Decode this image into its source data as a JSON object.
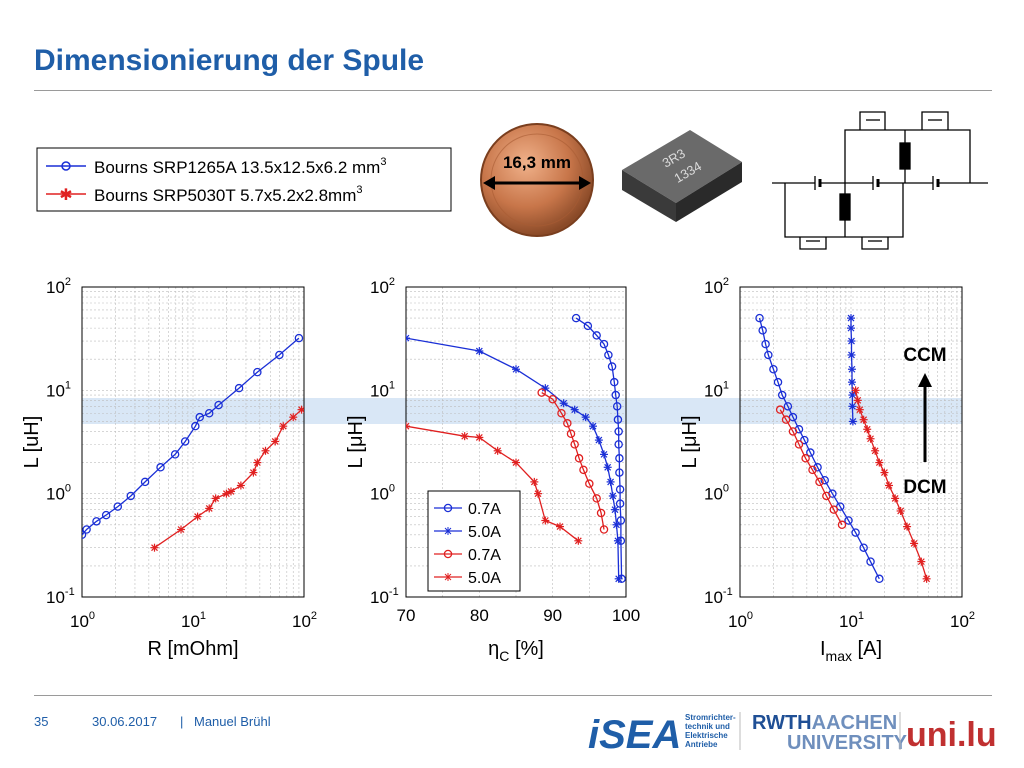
{
  "slide": {
    "title": "Dimensionierung der Spule",
    "page_number": "35",
    "date": "30.06.2017",
    "separator": "|",
    "author": "Manuel Brühl"
  },
  "legend_top": {
    "entries": [
      {
        "label": "Bourns SRP1265A 13.5x12.5x6.2 mm",
        "sup": "3",
        "color": "#1a2fd6",
        "marker": "circle"
      },
      {
        "label": "Bourns SRP5030T 5.7x5.2x2.8mm",
        "sup": "3",
        "color": "#e02020",
        "marker": "star"
      }
    ]
  },
  "coin": {
    "label": "16,3 mm"
  },
  "inductor_marking": {
    "line1": "3R3",
    "line2": "1334"
  },
  "logos": {
    "isea": "iSEA",
    "isea_sub": [
      "Stromrichter-",
      "technik und",
      "Elektrische",
      "Antriebe"
    ],
    "rwth_1": "RWTH",
    "rwth_2": "AACHEN",
    "rwth_3": "UNIVERSITY",
    "unilu": "uni.lu"
  },
  "chart_data": [
    {
      "type": "scatter",
      "xscale": "log",
      "yscale": "log",
      "xlim": [
        1,
        100
      ],
      "ylim": [
        0.1,
        100
      ],
      "xlabel": "R [mOhm]",
      "ylabel": "L [uH]",
      "xticks": [
        {
          "base": "10",
          "exp": "0"
        },
        {
          "base": "10",
          "exp": "1"
        },
        {
          "base": "10",
          "exp": "2"
        }
      ],
      "yticks": [
        {
          "base": "10",
          "exp": "-1"
        },
        {
          "base": "10",
          "exp": "0"
        },
        {
          "base": "10",
          "exp": "1"
        },
        {
          "base": "10",
          "exp": "2"
        }
      ],
      "grid": true,
      "series": [
        {
          "color": "#1a2fd6",
          "marker": "circle",
          "x": [
            1.0,
            1.1,
            1.35,
            1.65,
            2.1,
            2.75,
            3.7,
            5.1,
            6.9,
            8.5,
            10.5,
            11.5,
            14,
            17,
            26,
            38,
            60,
            90
          ],
          "y": [
            0.4,
            0.45,
            0.54,
            0.62,
            0.75,
            0.95,
            1.3,
            1.8,
            2.4,
            3.2,
            4.5,
            5.5,
            6.0,
            7.2,
            10.5,
            15,
            22,
            32
          ]
        },
        {
          "color": "#e02020",
          "marker": "star",
          "x": [
            4.5,
            7.8,
            11,
            14,
            16,
            20,
            22,
            27,
            35,
            38,
            45,
            55,
            65,
            80,
            95
          ],
          "y": [
            0.3,
            0.45,
            0.6,
            0.72,
            0.9,
            1.0,
            1.05,
            1.2,
            1.6,
            2.0,
            2.6,
            3.2,
            4.5,
            5.5,
            6.5
          ]
        }
      ]
    },
    {
      "type": "scatter",
      "xscale": "linear",
      "yscale": "log",
      "xlim": [
        70,
        100
      ],
      "ylim": [
        0.1,
        100
      ],
      "xlabel_main": "η",
      "xlabel_sub": "C",
      "xlabel_unit": " [%]",
      "ylabel": "L [μH]",
      "xticks": [
        "70",
        "80",
        "90",
        "100"
      ],
      "yticks": [
        {
          "base": "10",
          "exp": "-1"
        },
        {
          "base": "10",
          "exp": "0"
        },
        {
          "base": "10",
          "exp": "1"
        },
        {
          "base": "10",
          "exp": "2"
        }
      ],
      "grid": true,
      "legend": "lower-left",
      "series": [
        {
          "name": "0.7A",
          "color": "#1a2fd6",
          "marker": "circle",
          "x": [
            93.2,
            94.8,
            96.0,
            97.0,
            97.6,
            98.1,
            98.4,
            98.6,
            98.8,
            98.9,
            99.0,
            99.0,
            99.1,
            99.1,
            99.2,
            99.2,
            99.3,
            99.3,
            99.4
          ],
          "y": [
            50,
            42,
            34,
            28,
            22,
            17,
            12,
            9,
            7,
            5.2,
            4,
            3,
            2.2,
            1.6,
            1.1,
            0.8,
            0.55,
            0.35,
            0.15
          ]
        },
        {
          "name": "5.0A",
          "color": "#1a2fd6",
          "marker": "star",
          "x": [
            70.0,
            80.0,
            85.0,
            89.0,
            91.5,
            93.0,
            94.5,
            95.5,
            96.3,
            97.0,
            97.5,
            97.9,
            98.2,
            98.5,
            98.7,
            98.9,
            99.0
          ],
          "y": [
            32,
            24,
            16,
            10.5,
            7.5,
            6.5,
            5.5,
            4.5,
            3.3,
            2.4,
            1.8,
            1.3,
            0.95,
            0.7,
            0.5,
            0.35,
            0.15
          ]
        },
        {
          "name": "0.7A",
          "color": "#e02020",
          "marker": "circle",
          "x": [
            88.5,
            90.0,
            91.2,
            92.0,
            92.5,
            93.0,
            93.6,
            94.2,
            95.0,
            96.0,
            96.6,
            97.0
          ],
          "y": [
            9.5,
            8.2,
            6.0,
            4.8,
            3.8,
            3.0,
            2.2,
            1.7,
            1.25,
            0.9,
            0.65,
            0.45
          ]
        },
        {
          "name": "5.0A",
          "color": "#e02020",
          "marker": "star",
          "x": [
            70.0,
            78.0,
            80.0,
            82.5,
            85.0,
            87.5,
            88.0,
            89.0,
            91.0,
            93.5
          ],
          "y": [
            4.5,
            3.6,
            3.5,
            2.6,
            2.0,
            1.3,
            1.0,
            0.55,
            0.48,
            0.35
          ]
        }
      ]
    },
    {
      "type": "scatter",
      "xscale": "log",
      "yscale": "log",
      "xlim": [
        1,
        100
      ],
      "ylim": [
        0.1,
        100
      ],
      "xlabel_main": "I",
      "xlabel_sub": "max",
      "xlabel_unit": " [A]",
      "ylabel": "L [μH]",
      "xticks": [
        {
          "base": "10",
          "exp": "0"
        },
        {
          "base": "10",
          "exp": "1"
        },
        {
          "base": "10",
          "exp": "2"
        }
      ],
      "yticks": [
        {
          "base": "10",
          "exp": "-1"
        },
        {
          "base": "10",
          "exp": "0"
        },
        {
          "base": "10",
          "exp": "1"
        },
        {
          "base": "10",
          "exp": "2"
        }
      ],
      "grid": true,
      "annotations": {
        "upper": "CCM",
        "lower": "DCM"
      },
      "series": [
        {
          "color": "#1a2fd6",
          "marker": "circle",
          "x": [
            1.5,
            1.6,
            1.7,
            1.8,
            2.0,
            2.2,
            2.4,
            2.7,
            3.0,
            3.4,
            3.8,
            4.3,
            5.0,
            5.8,
            6.8,
            8.0,
            9.5,
            11,
            13,
            15,
            18
          ],
          "y": [
            50,
            38,
            28,
            22,
            16,
            12,
            9,
            7,
            5.5,
            4.2,
            3.3,
            2.5,
            1.8,
            1.35,
            1.0,
            0.75,
            0.55,
            0.42,
            0.3,
            0.22,
            0.15
          ]
        },
        {
          "color": "#1a2fd6",
          "marker": "star",
          "x": [
            10,
            10,
            10.1,
            10.1,
            10.2,
            10.2,
            10.3,
            10.3,
            10.4
          ],
          "y": [
            50,
            40,
            30,
            22,
            16,
            12,
            9,
            7,
            5
          ]
        },
        {
          "color": "#e02020",
          "marker": "circle",
          "x": [
            2.3,
            2.6,
            3.0,
            3.4,
            3.9,
            4.5,
            5.2,
            6.0,
            7.0,
            8.3
          ],
          "y": [
            6.5,
            5.2,
            4.0,
            3.0,
            2.2,
            1.7,
            1.3,
            0.95,
            0.7,
            0.5
          ]
        },
        {
          "color": "#e02020",
          "marker": "star",
          "x": [
            11,
            11.5,
            12,
            13,
            14,
            15,
            16.5,
            18,
            20,
            22,
            25,
            28,
            32,
            37,
            43,
            48
          ],
          "y": [
            10,
            8,
            6.5,
            5.2,
            4.2,
            3.4,
            2.6,
            2.0,
            1.6,
            1.2,
            0.9,
            0.68,
            0.48,
            0.33,
            0.22,
            0.15
          ]
        }
      ]
    }
  ]
}
